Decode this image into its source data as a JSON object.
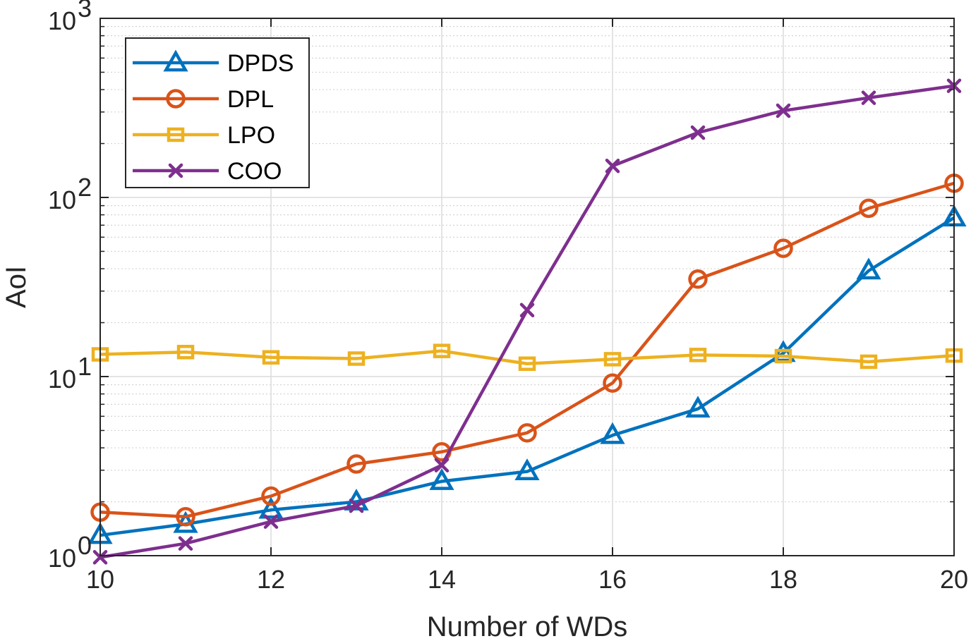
{
  "chart_data": {
    "type": "line",
    "title": "",
    "xlabel": "Number of WDs",
    "ylabel": "AoI",
    "yscale": "log",
    "xlim": [
      10,
      20
    ],
    "ylim": [
      1,
      1000
    ],
    "grid": true,
    "legend_position": "top-left",
    "x": [
      10,
      11,
      12,
      13,
      14,
      15,
      16,
      17,
      18,
      19,
      20
    ],
    "xticks": [
      10,
      12,
      14,
      16,
      18,
      20
    ],
    "xtick_labels": [
      "10",
      "12",
      "14",
      "16",
      "18",
      "20"
    ],
    "yticks": [
      {
        "value": 1,
        "base": "10",
        "exp": "0"
      },
      {
        "value": 10,
        "base": "10",
        "exp": "1"
      },
      {
        "value": 100,
        "base": "10",
        "exp": "2"
      },
      {
        "value": 1000,
        "base": "10",
        "exp": "3"
      }
    ],
    "series": [
      {
        "name": "DPDS",
        "color": "#0072BD",
        "marker": "triangle",
        "values": [
          1.3,
          1.5,
          1.8,
          2.0,
          2.6,
          2.95,
          4.7,
          6.6,
          13.5,
          39,
          77
        ]
      },
      {
        "name": "DPL",
        "color": "#D95319",
        "marker": "circle",
        "values": [
          1.75,
          1.65,
          2.15,
          3.25,
          3.8,
          4.85,
          9.2,
          35,
          52,
          87,
          120
        ]
      },
      {
        "name": "LPO",
        "color": "#EDB120",
        "marker": "square",
        "values": [
          13.3,
          13.7,
          12.8,
          12.6,
          13.9,
          11.8,
          12.5,
          13.2,
          13.0,
          12.1,
          13.1
        ]
      },
      {
        "name": "COO",
        "color": "#7E2F8E",
        "marker": "x",
        "values": [
          0.98,
          1.17,
          1.55,
          1.9,
          3.2,
          23.5,
          150,
          230,
          305,
          360,
          420
        ]
      }
    ]
  }
}
